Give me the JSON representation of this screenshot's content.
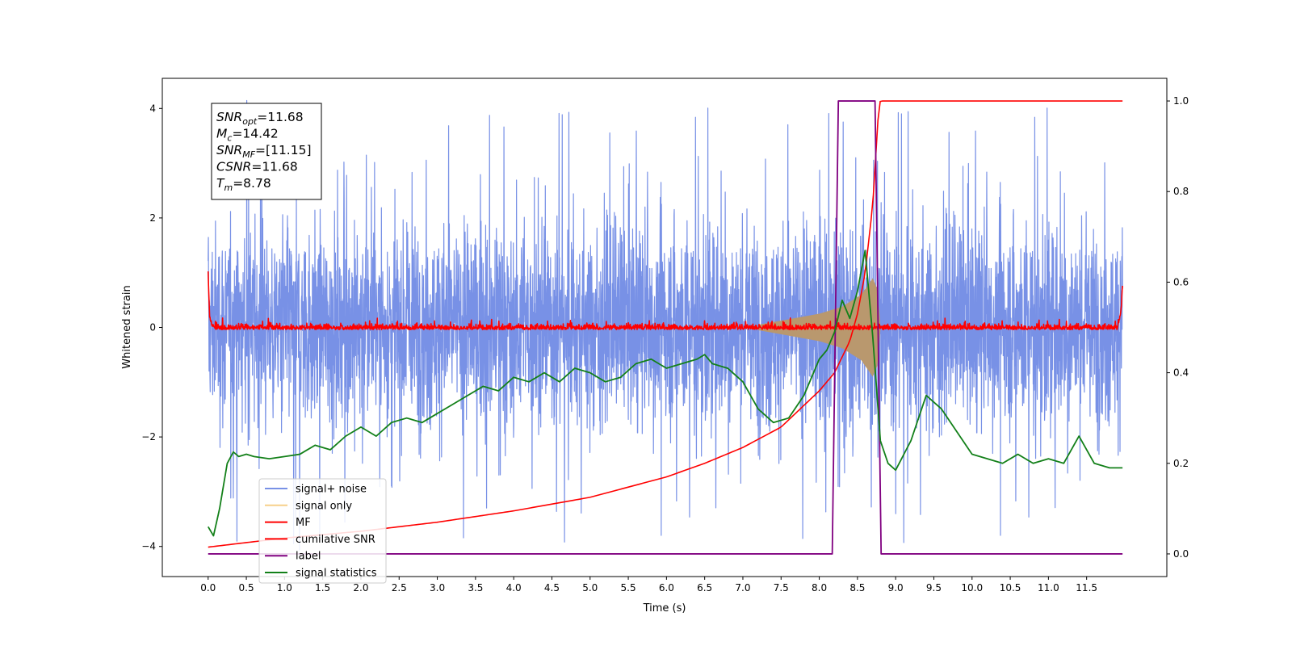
{
  "chart_data": {
    "type": "line",
    "xlabel": "Time (s)",
    "ylabel": "Whitened strain",
    "xlim": [
      -0.6,
      12.55
    ],
    "ylim": [
      -4.55,
      4.55
    ],
    "y2lim": [
      -0.05,
      1.05
    ],
    "xticks": [
      "0.0",
      "0.5",
      "1.0",
      "1.5",
      "2.0",
      "2.5",
      "3.0",
      "3.5",
      "4.0",
      "4.5",
      "5.0",
      "5.5",
      "6.0",
      "6.5",
      "7.0",
      "7.5",
      "8.0",
      "8.5",
      "9.0",
      "9.5",
      "10.0",
      "10.5",
      "11.0",
      "11.5"
    ],
    "yticks": [
      "4",
      "2",
      "0",
      "−2",
      "−4"
    ],
    "y2ticks": [
      "1.0",
      "0.8",
      "0.6",
      "0.4",
      "0.2",
      "0.0"
    ],
    "legend_position": "lower-left",
    "colors": {
      "signal_noise": "#7891e6",
      "signal_only": "#f7d08a",
      "signal_only_fill": "#b9986e",
      "mf": "#ff0000",
      "cumulative_snr": "#ff0000",
      "label": "#800080",
      "signal_statistics": "#138019"
    },
    "series": [
      {
        "name": "signal+ noise",
        "axis": "left",
        "noise_envelope": {
          "t": [
            0.0,
            1.0,
            2.0,
            3.0,
            4.0,
            5.0,
            6.0,
            7.0,
            8.0,
            8.3,
            8.6,
            8.75,
            9.0,
            10.0,
            11.0,
            11.97
          ],
          "typical_upper": [
            2.3,
            2.4,
            2.4,
            2.4,
            2.4,
            2.4,
            2.4,
            2.4,
            2.5,
            2.7,
            2.8,
            2.8,
            2.5,
            2.4,
            2.4,
            2.3
          ],
          "typical_lower": [
            -2.2,
            -2.3,
            -2.3,
            -2.3,
            -2.3,
            -2.3,
            -2.3,
            -2.3,
            -2.4,
            -2.6,
            -2.8,
            -2.8,
            -2.4,
            -2.3,
            -2.3,
            -2.2
          ],
          "peak_max": 4.15,
          "peak_min": -4.15
        }
      },
      {
        "name": "signal only",
        "axis": "left",
        "chirp_envelope": {
          "t": [
            7.2,
            7.6,
            8.0,
            8.3,
            8.55,
            8.7,
            8.76,
            8.8
          ],
          "amplitude": [
            0.05,
            0.15,
            0.25,
            0.38,
            0.6,
            0.9,
            0.7,
            0.05
          ]
        }
      },
      {
        "name": "MF",
        "axis": "left",
        "x": [
          0.0,
          0.02,
          0.05,
          0.1,
          11.9,
          11.95,
          11.97
        ],
        "values": [
          1.0,
          0.2,
          0.05,
          0.0,
          0.0,
          0.3,
          0.8
        ],
        "noise_amplitude": 0.12
      },
      {
        "name": "cumilative SNR",
        "axis": "right",
        "x": [
          0.0,
          0.5,
          1.0,
          2.0,
          3.0,
          4.0,
          5.0,
          6.0,
          6.5,
          7.0,
          7.5,
          8.0,
          8.2,
          8.4,
          8.5,
          8.6,
          8.7,
          8.78,
          8.8,
          11.97
        ],
        "values": [
          0.015,
          0.025,
          0.035,
          0.05,
          0.07,
          0.095,
          0.125,
          0.17,
          0.2,
          0.235,
          0.28,
          0.36,
          0.4,
          0.47,
          0.53,
          0.62,
          0.77,
          0.99,
          1.0,
          1.0
        ]
      },
      {
        "name": "label",
        "axis": "right",
        "x": [
          0.0,
          8.17,
          8.25,
          8.73,
          8.81,
          11.97
        ],
        "values": [
          0.0,
          0.0,
          1.0,
          1.0,
          0.0,
          0.0
        ]
      },
      {
        "name": "signal statistics",
        "axis": "right",
        "x": [
          0.0,
          0.07,
          0.15,
          0.25,
          0.33,
          0.4,
          0.5,
          0.6,
          0.8,
          1.0,
          1.2,
          1.4,
          1.6,
          1.8,
          2.0,
          2.2,
          2.4,
          2.6,
          2.8,
          3.0,
          3.2,
          3.4,
          3.6,
          3.8,
          4.0,
          4.2,
          4.4,
          4.6,
          4.8,
          5.0,
          5.2,
          5.4,
          5.6,
          5.8,
          6.0,
          6.2,
          6.4,
          6.5,
          6.6,
          6.8,
          7.0,
          7.2,
          7.4,
          7.6,
          7.8,
          8.0,
          8.1,
          8.2,
          8.3,
          8.4,
          8.5,
          8.6,
          8.7,
          8.8,
          8.9,
          9.0,
          9.2,
          9.4,
          9.6,
          9.8,
          10.0,
          10.2,
          10.4,
          10.6,
          10.8,
          11.0,
          11.2,
          11.4,
          11.6,
          11.8,
          11.97
        ],
        "values": [
          0.06,
          0.04,
          0.1,
          0.2,
          0.225,
          0.215,
          0.22,
          0.215,
          0.21,
          0.215,
          0.22,
          0.24,
          0.23,
          0.26,
          0.28,
          0.26,
          0.29,
          0.3,
          0.29,
          0.31,
          0.33,
          0.35,
          0.37,
          0.36,
          0.39,
          0.38,
          0.4,
          0.38,
          0.41,
          0.4,
          0.38,
          0.39,
          0.42,
          0.43,
          0.41,
          0.42,
          0.43,
          0.44,
          0.42,
          0.41,
          0.38,
          0.32,
          0.29,
          0.3,
          0.35,
          0.43,
          0.45,
          0.49,
          0.56,
          0.52,
          0.58,
          0.67,
          0.48,
          0.25,
          0.2,
          0.185,
          0.25,
          0.35,
          0.32,
          0.27,
          0.22,
          0.21,
          0.2,
          0.22,
          0.2,
          0.21,
          0.2,
          0.26,
          0.2,
          0.19,
          0.19
        ]
      }
    ],
    "annotation": {
      "lines": [
        {
          "main": "SNR",
          "sub": "opt",
          "value": "=11.68"
        },
        {
          "main": "M",
          "sub": "c",
          "value": "=14.42"
        },
        {
          "main": "SNR",
          "sub": "MF",
          "value": "=[11.15]"
        },
        {
          "main": "CSNR",
          "sub": "",
          "value": "=11.68"
        },
        {
          "main": "T",
          "sub": "m",
          "value": "=8.78"
        }
      ]
    }
  }
}
